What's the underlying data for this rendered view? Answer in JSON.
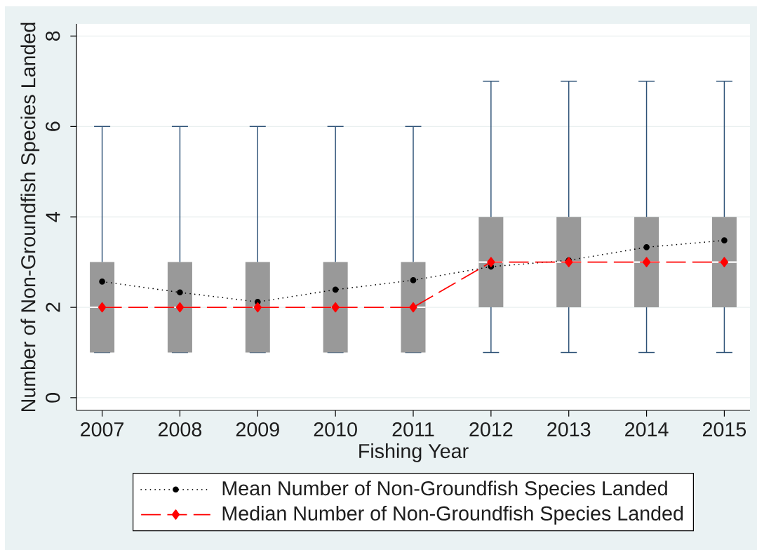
{
  "chart_data": {
    "type": "box",
    "xlabel": "Fishing Year",
    "ylabel": "Number of Non-Groundfish Species Landed",
    "categories": [
      "2007",
      "2008",
      "2009",
      "2010",
      "2011",
      "2012",
      "2013",
      "2014",
      "2015"
    ],
    "ylim": [
      -0.28,
      8.27
    ],
    "yticks": [
      0,
      2,
      4,
      6,
      8
    ],
    "grid": "y",
    "legend": "bottom",
    "series": [
      {
        "color": "#999999",
        "boxes": [
          {
            "low": 1,
            "q1": 1,
            "median": 2,
            "q3": 3,
            "high": 6
          },
          {
            "low": 1,
            "q1": 1,
            "median": 2,
            "q3": 3,
            "high": 6
          },
          {
            "low": 1,
            "q1": 1,
            "median": 2,
            "q3": 3,
            "high": 6
          },
          {
            "low": 1,
            "q1": 1,
            "median": 2,
            "q3": 3,
            "high": 6
          },
          {
            "low": 1,
            "q1": 1,
            "median": 2,
            "q3": 3,
            "high": 6
          },
          {
            "low": 1,
            "q1": 2,
            "median": 3,
            "q3": 4,
            "high": 7
          },
          {
            "low": 1,
            "q1": 2,
            "median": 3,
            "q3": 4,
            "high": 7
          },
          {
            "low": 1,
            "q1": 2,
            "median": 3,
            "q3": 4,
            "high": 7
          },
          {
            "low": 1,
            "q1": 2,
            "median": 3,
            "q3": 4,
            "high": 7
          }
        ]
      },
      {
        "type": "line",
        "name": "Mean Number of Non-Groundfish Species Landed",
        "color": "#000000",
        "values": [
          2.57,
          2.33,
          2.12,
          2.39,
          2.6,
          2.9,
          3.04,
          3.33,
          3.48
        ],
        "marker": "circle",
        "line_style": "dotted"
      },
      {
        "type": "line",
        "name": "Median Number of Non-Groundfish Species Landed",
        "color": "#ff0000",
        "values": [
          2,
          2,
          2,
          2,
          2,
          3,
          3,
          3,
          3
        ],
        "marker": "diamond",
        "line_style": "dashed"
      }
    ]
  }
}
